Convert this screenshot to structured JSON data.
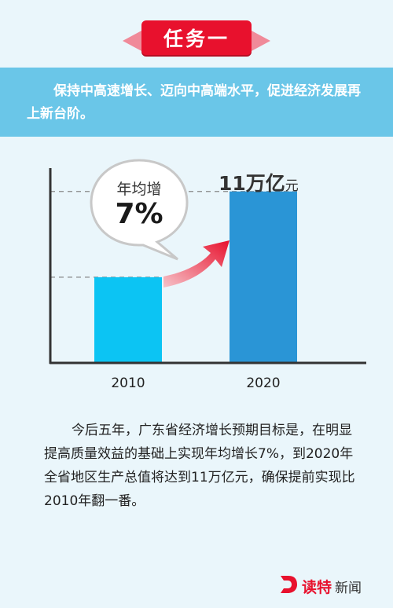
{
  "header": {
    "title": "任务一"
  },
  "band": {
    "text": "保持中高速增长、迈向中高端水平，促进经济发展再上新台阶。"
  },
  "bubble": {
    "line1": "年均增",
    "line2": "7%"
  },
  "callout": {
    "value": "11万亿",
    "unit": "元"
  },
  "chart_data": {
    "type": "bar",
    "categories": [
      "2010",
      "2020"
    ],
    "values": [
      5.5,
      11
    ],
    "ylim": [
      0,
      12.5
    ],
    "grid": false,
    "annotations": [
      "年均增 7%",
      "11万亿元"
    ],
    "colors": {
      "bar_2010": "#0cc4f3",
      "bar_2020": "#2a95d6",
      "arrow": "#e8112d"
    }
  },
  "paragraph": "今后五年，广东省经济增长预期目标是，在明显提高质量效益的基础上实现年均增长7%，到2020年全省地区生产总值将达到11万亿元，确保提前实现比2010年翻一番。",
  "logo": {
    "icon": "d-logo-icon",
    "brand": "读特",
    "suffix": "新闻"
  }
}
